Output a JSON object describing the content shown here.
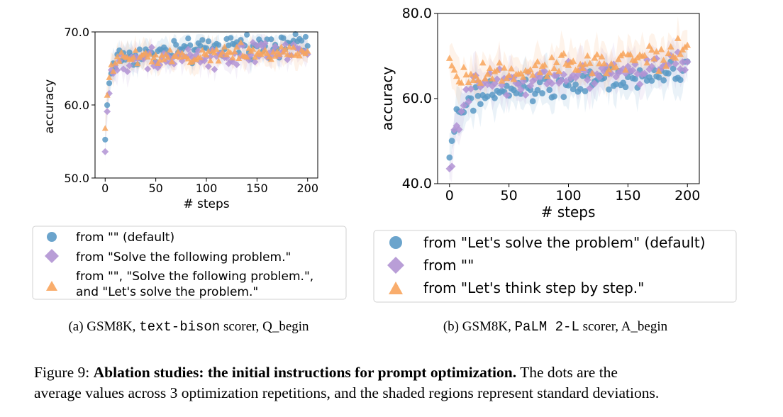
{
  "figure": {
    "label": "Figure 9:",
    "title": "Ablation studies: the initial instructions for prompt optimization.",
    "text1": " The dots are the",
    "text2": "average values across 3 optimization repetitions, and the shaded regions represent standard deviations."
  },
  "colors": {
    "blue": "#5b9ac6",
    "purple": "#b193d3",
    "orange": "#f8a45c"
  },
  "chart_data": [
    {
      "type": "scatter",
      "xlabel": "# steps",
      "ylabel": "accuracy",
      "xlim": [
        -10,
        210
      ],
      "ylim": [
        50,
        70
      ],
      "xticks": [
        "0",
        "50",
        "100",
        "150",
        "200"
      ],
      "xtick_values": [
        0,
        50,
        100,
        150,
        200
      ],
      "yticks": [
        "50.0",
        "60.0",
        "70.0"
      ],
      "ytick_values": [
        50,
        60,
        70
      ],
      "legend_placement": "below",
      "caption": {
        "prefix": "(a) GSM8K, ",
        "code": "text-bison",
        "suffix": " scorer, Q_begin"
      },
      "series": [
        {
          "name": "from \"\" (default)",
          "color": "#5b9ac6",
          "marker": "circle",
          "curve": {
            "start": 55,
            "plateau": 66.5,
            "rate": 0.3,
            "slope": 0.012,
            "noise": 1.3,
            "std": 1.5
          }
        },
        {
          "name": "from \"Solve the following problem.\"",
          "color": "#b193d3",
          "marker": "diamond",
          "curve": {
            "start": 53.3,
            "plateau": 66,
            "rate": 0.3,
            "slope": 0.006,
            "noise": 1.2,
            "std": 1.5
          }
        },
        {
          "name": "from \"\", \"Solve the following problem.\",",
          "name2": "and \"Let's solve the problem.\"",
          "color": "#f8a45c",
          "marker": "triangle",
          "curve": {
            "start": 56.5,
            "plateau": 66.6,
            "rate": 0.3,
            "slope": 0.003,
            "noise": 1.0,
            "std": 1.6
          }
        }
      ]
    },
    {
      "type": "scatter",
      "xlabel": "# steps",
      "ylabel": "accuracy",
      "xlim": [
        -10,
        210
      ],
      "ylim": [
        40,
        80
      ],
      "xticks": [
        "0",
        "50",
        "100",
        "150",
        "200"
      ],
      "xtick_values": [
        0,
        50,
        100,
        150,
        200
      ],
      "yticks": [
        "40.0",
        "60.0",
        "80.0"
      ],
      "ytick_values": [
        40,
        60,
        80
      ],
      "legend_placement": "below",
      "caption": {
        "prefix": "(b) GSM8K, ",
        "code": "PaLM 2-L",
        "suffix": " scorer, A_begin"
      },
      "series": [
        {
          "name": "from \"Let's solve the problem\" (default)",
          "color": "#5b9ac6",
          "marker": "circle",
          "curve": {
            "start": 48,
            "plateau": 60,
            "rate": 0.12,
            "slope": 0.03,
            "noise": 2.8,
            "std": 4
          }
        },
        {
          "name": "from \"\"",
          "color": "#b193d3",
          "marker": "diamond",
          "curve": {
            "start": 42,
            "plateau": 63,
            "rate": 0.14,
            "slope": 0.025,
            "noise": 2.8,
            "std": 4
          }
        },
        {
          "name": "from \"Let's think step by step.\"",
          "color": "#f8a45c",
          "marker": "triangle",
          "curve": {
            "start": 68,
            "plateau": 65,
            "rate": 0.2,
            "slope": 0.03,
            "noise": 2.5,
            "std": 4
          }
        }
      ]
    }
  ]
}
